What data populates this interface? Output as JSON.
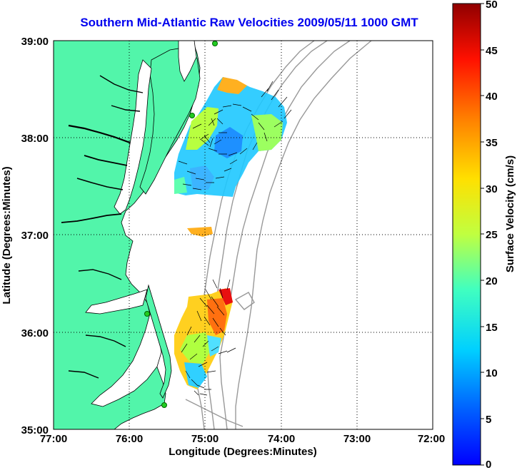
{
  "title": "Southern Mid-Atlantic Raw Velocities 2009/05/11 1000 GMT",
  "x_axis": {
    "label": "Longitude (Degrees:Minutes)",
    "ticks": [
      "77:00",
      "76:00",
      "75:00",
      "74:00",
      "73:00",
      "72:00"
    ]
  },
  "y_axis": {
    "label": "Latitude (Degrees:Minutes)",
    "ticks": [
      "39:00",
      "38:00",
      "37:00",
      "36:00",
      "35:00"
    ]
  },
  "colorbar": {
    "label": "Surface Velocity (cm/s)",
    "ticks": [
      "50",
      "45",
      "40",
      "35",
      "30",
      "25",
      "20",
      "15",
      "10",
      "5",
      "0"
    ],
    "min": 0,
    "max": 50,
    "colormap": "jet"
  },
  "colors": {
    "land": "#52f5aa",
    "sea": "#ffffff",
    "title": "#0000ee",
    "coast_line": "#000000",
    "bathymetry": "#999999",
    "station_marker": "#22cc22"
  },
  "map": {
    "lon_range": [
      "77:00",
      "72:00"
    ],
    "lat_range": [
      "35:00",
      "39:00"
    ],
    "grid": "dotted"
  }
}
